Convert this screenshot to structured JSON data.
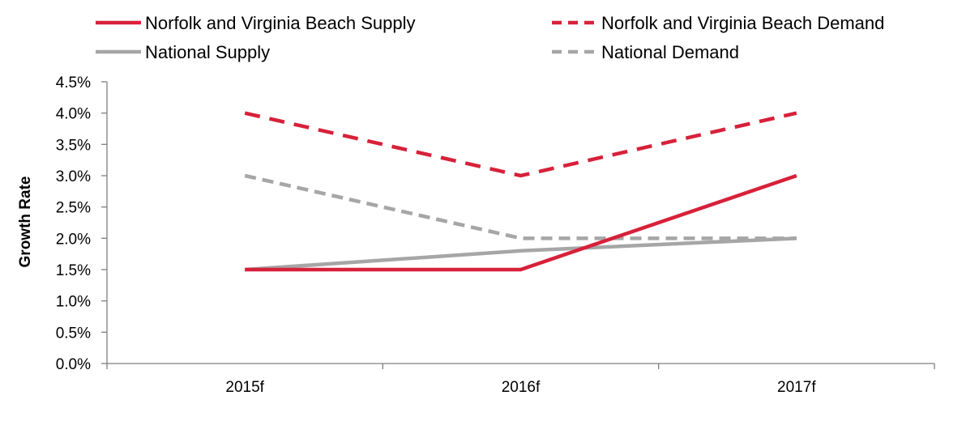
{
  "chart_data": {
    "type": "line",
    "title": "",
    "xlabel": "",
    "ylabel": "Growth Rate",
    "categories": [
      "2015f",
      "2016f",
      "2017f"
    ],
    "ylim": [
      0,
      4.5
    ],
    "yticks": [
      0,
      0.5,
      1.0,
      1.5,
      2.0,
      2.5,
      3.0,
      3.5,
      4.0,
      4.5
    ],
    "ytick_labels": [
      "0.0%",
      "0.5%",
      "1.0%",
      "1.5%",
      "2.0%",
      "2.5%",
      "3.0%",
      "3.5%",
      "4.0%",
      "4.5%"
    ],
    "y_unit": "%",
    "grid": false,
    "legend_position": "top",
    "series": [
      {
        "name": "Norfolk and Virginia Beach Supply",
        "values": [
          1.5,
          1.5,
          3.0
        ],
        "color": "#d7213a",
        "dash": "solid"
      },
      {
        "name": "Norfolk and Virginia Beach Demand",
        "values": [
          4.0,
          3.0,
          4.0
        ],
        "color": "#d7213a",
        "dash": "dashed"
      },
      {
        "name": "National Supply",
        "values": [
          1.5,
          1.8,
          2.0
        ],
        "color": "#a6a6a6",
        "dash": "solid"
      },
      {
        "name": "National Demand",
        "values": [
          3.0,
          2.0,
          2.0
        ],
        "color": "#a6a6a6",
        "dash": "dashed"
      }
    ]
  }
}
